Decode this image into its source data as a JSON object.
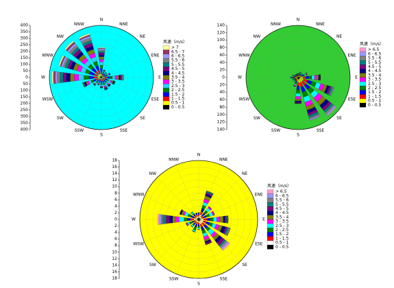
{
  "chart_data": [
    {
      "type": "wind-rose",
      "background": "#00ffff",
      "legend_title": "风速（m/s）",
      "directions": [
        "N",
        "NNE",
        "NE",
        "ENE",
        "E",
        "ESE",
        "SE",
        "SSE",
        "S",
        "SSW",
        "SW",
        "WSW",
        "W",
        "WNW",
        "NW",
        "NNW"
      ],
      "rlim": [
        0,
        400
      ],
      "rticks": [
        0,
        50,
        100,
        150,
        200,
        250,
        300,
        350,
        400
      ],
      "grid": true,
      "series": [
        {
          "name": "0 - 0.5",
          "color": "#000000",
          "values": [
            10,
            5,
            5,
            5,
            10,
            5,
            5,
            5,
            5,
            5,
            5,
            10,
            10,
            10,
            10,
            10
          ]
        },
        {
          "name": "0.5 - 1",
          "color": "#ffff00",
          "values": [
            15,
            10,
            10,
            10,
            15,
            10,
            10,
            10,
            10,
            10,
            10,
            15,
            20,
            20,
            20,
            20
          ]
        },
        {
          "name": "1 - 1.5",
          "color": "#ff0000",
          "values": [
            20,
            10,
            10,
            10,
            20,
            15,
            15,
            15,
            15,
            10,
            15,
            20,
            30,
            30,
            30,
            30
          ]
        },
        {
          "name": "1.5 - 2",
          "color": "#0000ff",
          "values": [
            25,
            10,
            10,
            15,
            20,
            15,
            15,
            15,
            15,
            10,
            15,
            20,
            35,
            35,
            35,
            35
          ]
        },
        {
          "name": "2 - 2.5",
          "color": "#008000",
          "values": [
            25,
            10,
            5,
            10,
            20,
            15,
            10,
            15,
            10,
            10,
            10,
            20,
            40,
            35,
            35,
            35
          ]
        },
        {
          "name": "2.5 - 3",
          "color": "#33ccff",
          "values": [
            25,
            5,
            5,
            10,
            20,
            15,
            10,
            10,
            10,
            5,
            10,
            15,
            40,
            35,
            35,
            35
          ]
        },
        {
          "name": "3 - 3.5",
          "color": "#ff00ff",
          "values": [
            20,
            5,
            5,
            5,
            15,
            10,
            10,
            10,
            5,
            5,
            5,
            15,
            35,
            30,
            30,
            30
          ]
        },
        {
          "name": "3.5 - 4",
          "color": "#808000",
          "values": [
            20,
            5,
            0,
            5,
            15,
            10,
            5,
            5,
            5,
            5,
            5,
            10,
            30,
            30,
            30,
            30
          ]
        },
        {
          "name": "4 - 4.5",
          "color": "#000080",
          "values": [
            15,
            0,
            0,
            0,
            10,
            5,
            5,
            5,
            5,
            0,
            5,
            10,
            30,
            25,
            25,
            25
          ]
        },
        {
          "name": "4.5 - 5",
          "color": "#800080",
          "values": [
            15,
            0,
            0,
            0,
            10,
            5,
            5,
            5,
            0,
            0,
            0,
            5,
            25,
            20,
            25,
            25
          ]
        },
        {
          "name": "5 - 5.5",
          "color": "#008080",
          "values": [
            10,
            0,
            0,
            0,
            5,
            5,
            0,
            5,
            0,
            0,
            0,
            5,
            25,
            20,
            20,
            20
          ]
        },
        {
          "name": "5.5 - 6",
          "color": "#808080",
          "values": [
            10,
            0,
            0,
            0,
            5,
            0,
            0,
            0,
            0,
            0,
            0,
            5,
            20,
            15,
            20,
            20
          ]
        },
        {
          "name": "6 - 6.5",
          "color": "#9999ff",
          "values": [
            10,
            0,
            0,
            0,
            5,
            0,
            0,
            0,
            0,
            0,
            0,
            0,
            15,
            15,
            15,
            15
          ]
        },
        {
          "name": "6.5 - 7",
          "color": "#993366",
          "values": [
            5,
            0,
            0,
            0,
            0,
            0,
            0,
            0,
            0,
            0,
            0,
            0,
            15,
            10,
            15,
            10
          ]
        },
        {
          "name": "> 7",
          "color": "#ffff99",
          "values": [
            5,
            0,
            0,
            0,
            0,
            0,
            0,
            0,
            0,
            0,
            0,
            0,
            10,
            10,
            10,
            10
          ]
        }
      ]
    },
    {
      "type": "wind-rose",
      "background": "#33cc33",
      "legend_title": "风速（m/s）",
      "directions": [
        "N",
        "NNE",
        "NE",
        "ENE",
        "E",
        "ESE",
        "SE",
        "SSE",
        "S",
        "SSW",
        "SW",
        "WSW",
        "W",
        "WNW",
        "NW",
        "NNW"
      ],
      "rlim": [
        0,
        140
      ],
      "rticks": [
        0,
        20,
        40,
        60,
        80,
        100,
        120,
        140
      ],
      "grid": true,
      "series": [
        {
          "name": "0 - 0.5",
          "color": "#000000",
          "values": [
            2,
            2,
            2,
            3,
            5,
            5,
            5,
            5,
            5,
            3,
            2,
            2,
            3,
            2,
            2,
            2
          ]
        },
        {
          "name": "0.5 - 1",
          "color": "#ffff00",
          "values": [
            2,
            3,
            3,
            4,
            8,
            10,
            10,
            10,
            8,
            4,
            3,
            3,
            4,
            3,
            2,
            2
          ]
        },
        {
          "name": "1 - 1.5",
          "color": "#ff0000",
          "values": [
            2,
            3,
            3,
            4,
            8,
            12,
            12,
            12,
            10,
            4,
            3,
            3,
            4,
            3,
            2,
            2
          ]
        },
        {
          "name": "1.5 - 2",
          "color": "#0000ff",
          "values": [
            2,
            3,
            3,
            4,
            8,
            12,
            14,
            14,
            10,
            4,
            3,
            3,
            4,
            3,
            2,
            2
          ]
        },
        {
          "name": "2 - 2.5",
          "color": "#008000",
          "values": [
            2,
            2,
            2,
            4,
            8,
            12,
            14,
            14,
            10,
            4,
            2,
            2,
            3,
            2,
            2,
            2
          ]
        },
        {
          "name": "2.5 - 3",
          "color": "#00ffff",
          "values": [
            0,
            2,
            2,
            3,
            7,
            12,
            14,
            14,
            8,
            3,
            2,
            2,
            2,
            2,
            0,
            0
          ]
        },
        {
          "name": "3 - 3.5",
          "color": "#ff00ff",
          "values": [
            0,
            0,
            0,
            2,
            6,
            10,
            14,
            12,
            7,
            2,
            0,
            0,
            0,
            0,
            0,
            0
          ]
        },
        {
          "name": "3.5 - 4",
          "color": "#808000",
          "values": [
            0,
            0,
            0,
            1,
            5,
            8,
            12,
            10,
            5,
            1,
            0,
            0,
            0,
            0,
            0,
            0
          ]
        },
        {
          "name": "4 - 4.5",
          "color": "#000080",
          "values": [
            0,
            0,
            0,
            0,
            3,
            6,
            10,
            8,
            4,
            0,
            0,
            0,
            0,
            0,
            0,
            0
          ]
        },
        {
          "name": "4.5 - 5",
          "color": "#800080",
          "values": [
            0,
            0,
            0,
            0,
            2,
            5,
            8,
            7,
            3,
            0,
            0,
            0,
            0,
            0,
            0,
            0
          ]
        },
        {
          "name": "5 - 5.5",
          "color": "#008080",
          "values": [
            0,
            0,
            0,
            0,
            0,
            4,
            6,
            6,
            0,
            0,
            0,
            0,
            0,
            0,
            0,
            0
          ]
        },
        {
          "name": "5.5 - 6",
          "color": "#808080",
          "values": [
            0,
            0,
            0,
            0,
            0,
            2,
            5,
            4,
            0,
            0,
            0,
            0,
            0,
            0,
            0,
            0
          ]
        },
        {
          "name": "6 - 6.5",
          "color": "#9999ff",
          "values": [
            0,
            0,
            0,
            0,
            0,
            2,
            4,
            3,
            0,
            0,
            0,
            0,
            0,
            0,
            0,
            0
          ]
        },
        {
          "name": "> 6.5",
          "color": "#ff99cc",
          "values": [
            0,
            0,
            0,
            0,
            0,
            0,
            2,
            1,
            0,
            0,
            0,
            0,
            0,
            0,
            0,
            0
          ]
        }
      ]
    },
    {
      "type": "wind-rose",
      "background": "#ffff00",
      "legend_title": "风速（m/s）",
      "directions": [
        "N",
        "NNE",
        "NE",
        "ENE",
        "E",
        "ESE",
        "SE",
        "SSE",
        "S",
        "SSW",
        "SW",
        "WSW",
        "W",
        "WNW",
        "NW",
        "NNW"
      ],
      "rlim": [
        0,
        18
      ],
      "rticks": [
        0,
        2,
        4,
        6,
        8,
        10,
        12,
        14,
        16,
        18
      ],
      "grid": true,
      "series": [
        {
          "name": "0 - 0.5",
          "color": "#000000",
          "values": [
            0.5,
            0.5,
            0.5,
            0.5,
            0.5,
            0.5,
            0.5,
            0.5,
            0.5,
            0.5,
            0.5,
            0.5,
            0.5,
            0.5,
            0.5,
            0.5
          ]
        },
        {
          "name": "0.5 - 1",
          "color": "#ffffff",
          "values": [
            0.5,
            1,
            0.5,
            0.5,
            1,
            1,
            1,
            1,
            0.5,
            0.5,
            0.5,
            0.5,
            1,
            0.5,
            0.5,
            0.5
          ]
        },
        {
          "name": "1 - 1.5",
          "color": "#ff0000",
          "values": [
            0.5,
            1,
            0.5,
            0.5,
            1,
            1,
            1,
            1,
            0.5,
            0.5,
            0.5,
            0.5,
            1,
            0.5,
            0.5,
            0.5
          ]
        },
        {
          "name": "1.5 - 2",
          "color": "#0000ff",
          "values": [
            0.5,
            1,
            1,
            1,
            1,
            1,
            1,
            1,
            0.5,
            1,
            0.5,
            0.5,
            1,
            1,
            0.5,
            0.5
          ]
        },
        {
          "name": "2 - 2.5",
          "color": "#008000",
          "values": [
            0,
            1,
            1,
            1,
            1,
            1,
            1,
            1,
            0.5,
            1,
            0.5,
            1,
            1,
            1,
            0.5,
            0
          ]
        },
        {
          "name": "2.5 - 3",
          "color": "#00ffff",
          "values": [
            0,
            1,
            1,
            1,
            1,
            1,
            1.5,
            1,
            0.5,
            0.5,
            0.5,
            0.5,
            1.5,
            1,
            0.5,
            0
          ]
        },
        {
          "name": "3 - 3.5",
          "color": "#ff00ff",
          "values": [
            0,
            1,
            0.5,
            0.5,
            1,
            1,
            1,
            1,
            0,
            0,
            0,
            0.5,
            1,
            0.5,
            0,
            0
          ]
        },
        {
          "name": "3.5 - 4",
          "color": "#808000",
          "values": [
            0,
            1,
            0,
            0,
            1,
            1,
            1,
            0.5,
            0,
            0,
            0,
            0,
            1,
            0.5,
            0,
            0
          ]
        },
        {
          "name": "4 - 4.5",
          "color": "#000080",
          "values": [
            0,
            0.5,
            0,
            0,
            0.5,
            1,
            1,
            0.5,
            0,
            0,
            0,
            0,
            1,
            0.5,
            0,
            0
          ]
        },
        {
          "name": "4.5 - 5",
          "color": "#800080",
          "values": [
            0,
            0.5,
            0,
            0,
            0.5,
            0.5,
            1,
            0.5,
            0,
            0,
            0,
            0,
            1,
            0,
            0,
            0
          ]
        },
        {
          "name": "5 - 5.5",
          "color": "#008080",
          "values": [
            0,
            0.5,
            0,
            0,
            0.5,
            0.5,
            0.5,
            0,
            0,
            0,
            0,
            0,
            1,
            0,
            0,
            0
          ]
        },
        {
          "name": "5.5 - 6",
          "color": "#808080",
          "values": [
            0,
            0,
            0,
            0,
            0,
            0.5,
            0.5,
            0,
            0,
            0,
            0,
            0,
            0.5,
            0,
            0,
            0
          ]
        },
        {
          "name": "6 - 6.5",
          "color": "#9999ff",
          "values": [
            0,
            0,
            0,
            0,
            0,
            0,
            0.5,
            0,
            0,
            0,
            0,
            0,
            0.5,
            0,
            0,
            0
          ]
        },
        {
          "name": "> 6.5",
          "color": "#ff99cc",
          "values": [
            0,
            0,
            0,
            0,
            0,
            0,
            0.5,
            0,
            0,
            0,
            0,
            0,
            0.5,
            0,
            0,
            0
          ]
        }
      ]
    }
  ]
}
